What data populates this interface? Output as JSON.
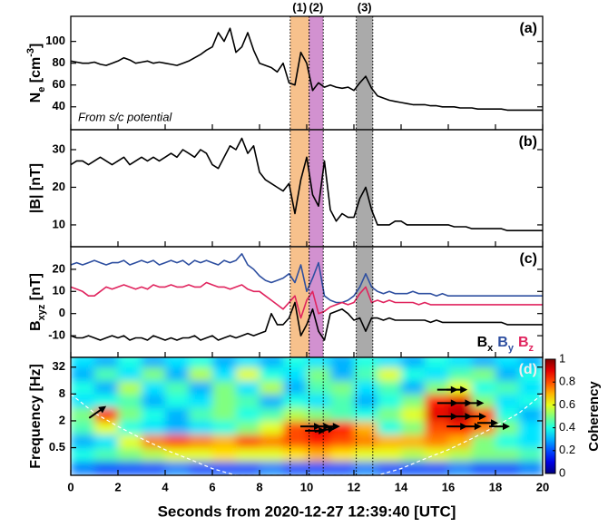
{
  "intervals": [
    {
      "label": "(1)",
      "start": 9.3,
      "end": 10.1,
      "color": "#f7c18c"
    },
    {
      "label": "(2)",
      "start": 10.1,
      "end": 10.7,
      "color": "#d291d0"
    },
    {
      "label": "(3)",
      "start": 12.1,
      "end": 12.8,
      "color": "#aaaaaa"
    }
  ],
  "chart_data": [
    {
      "type": "line",
      "panel_label": "(a)",
      "ylabel": [
        {
          "text": "N"
        },
        {
          "text": "e",
          "script": "sub"
        },
        {
          "text": " [cm"
        },
        {
          "text": "-3",
          "script": "super"
        },
        {
          "text": "]"
        }
      ],
      "annotation": "From s/c potential",
      "xlim": [
        0,
        20
      ],
      "xticks": [
        0,
        2,
        4,
        6,
        8,
        10,
        12,
        14,
        16,
        18,
        20
      ],
      "ylim": [
        19,
        123
      ],
      "yticks": [
        40,
        60,
        80,
        100
      ],
      "x": [
        0,
        0.25,
        0.5,
        0.75,
        1,
        1.25,
        1.5,
        1.75,
        2,
        2.25,
        2.5,
        2.75,
        3,
        3.25,
        3.5,
        3.75,
        4,
        4.25,
        4.5,
        4.75,
        5,
        5.25,
        5.5,
        5.75,
        6,
        6.25,
        6.5,
        6.75,
        7,
        7.25,
        7.5,
        7.75,
        8,
        8.25,
        8.5,
        8.75,
        9,
        9.25,
        9.5,
        9.75,
        10,
        10.25,
        10.5,
        10.75,
        11,
        11.25,
        11.5,
        11.75,
        12,
        12.25,
        12.5,
        12.75,
        13,
        13.25,
        13.5,
        13.75,
        14,
        14.25,
        14.5,
        14.75,
        15,
        15.25,
        15.5,
        15.75,
        16,
        16.25,
        16.5,
        16.75,
        17,
        17.25,
        17.5,
        17.75,
        18,
        18.25,
        18.5,
        18.75,
        19,
        19.25,
        19.5,
        19.75,
        20
      ],
      "series": [
        {
          "color": "#000000",
          "values": [
            82,
            81,
            80,
            80,
            81,
            79,
            78,
            80,
            82,
            85,
            83,
            80,
            81,
            82,
            80,
            81,
            80,
            79,
            78,
            80,
            82,
            85,
            88,
            92,
            95,
            108,
            100,
            112,
            90,
            95,
            108,
            92,
            80,
            78,
            76,
            72,
            80,
            62,
            60,
            90,
            80,
            55,
            62,
            58,
            60,
            58,
            57,
            58,
            55,
            62,
            68,
            57,
            50,
            48,
            46,
            45,
            44,
            43,
            42,
            42,
            42,
            41,
            41,
            40,
            40,
            40,
            39,
            39,
            39,
            38,
            38,
            38,
            38,
            38,
            37,
            37,
            37,
            37,
            37,
            37,
            37
          ]
        }
      ]
    },
    {
      "type": "line",
      "panel_label": "(b)",
      "ylabel": [
        {
          "text": "|B| [nT]"
        }
      ],
      "xlim": [
        0,
        20
      ],
      "xticks": [
        0,
        2,
        4,
        6,
        8,
        10,
        12,
        14,
        16,
        18,
        20
      ],
      "ylim": [
        4.2,
        35.3
      ],
      "yticks": [
        10,
        20,
        30
      ],
      "x": [
        0,
        0.25,
        0.5,
        0.75,
        1,
        1.25,
        1.5,
        1.75,
        2,
        2.25,
        2.5,
        2.75,
        3,
        3.25,
        3.5,
        3.75,
        4,
        4.25,
        4.5,
        4.75,
        5,
        5.25,
        5.5,
        5.75,
        6,
        6.25,
        6.5,
        6.75,
        7,
        7.25,
        7.5,
        7.75,
        8,
        8.25,
        8.5,
        8.75,
        9,
        9.25,
        9.5,
        9.75,
        10,
        10.25,
        10.5,
        10.75,
        11,
        11.25,
        11.5,
        11.75,
        12,
        12.25,
        12.5,
        12.75,
        13,
        13.25,
        13.5,
        13.75,
        14,
        14.25,
        14.5,
        14.75,
        15,
        15.25,
        15.5,
        15.75,
        16,
        16.25,
        16.5,
        16.75,
        17,
        17.25,
        17.5,
        17.75,
        18,
        18.25,
        18.5,
        18.75,
        19,
        19.25,
        19.5,
        19.75,
        20
      ],
      "series": [
        {
          "color": "#000000",
          "values": [
            26,
            27,
            27,
            26,
            27,
            28,
            27,
            26,
            27,
            28,
            26,
            27,
            28,
            27,
            28,
            27,
            28,
            29,
            28,
            30,
            29,
            28,
            30,
            29,
            26,
            25,
            28,
            31,
            30,
            33,
            29,
            31,
            24,
            22,
            21,
            20,
            19,
            21,
            13,
            22,
            28,
            18,
            15,
            27,
            14,
            11,
            13,
            12,
            12,
            17,
            20,
            14,
            10,
            10,
            10,
            11,
            11,
            10,
            10,
            10,
            10,
            10,
            10,
            10,
            10,
            9.5,
            9.5,
            9.5,
            9,
            9,
            9,
            9,
            9,
            9,
            8.5,
            8.5,
            8.5,
            8.5,
            8.5,
            8.5,
            8.5
          ]
        }
      ]
    },
    {
      "type": "line",
      "panel_label": "(c)",
      "ylabel": [
        {
          "text": "B"
        },
        {
          "text": "xyz",
          "script": "sub"
        },
        {
          "text": " [nT]"
        }
      ],
      "xlim": [
        0,
        20
      ],
      "xticks": [
        0,
        2,
        4,
        6,
        8,
        10,
        12,
        14,
        16,
        18,
        20
      ],
      "ylim": [
        -19.8,
        30.2
      ],
      "yticks": [
        -10,
        0,
        10,
        20
      ],
      "legend": "lower right",
      "x": [
        0,
        0.25,
        0.5,
        0.75,
        1,
        1.25,
        1.5,
        1.75,
        2,
        2.25,
        2.5,
        2.75,
        3,
        3.25,
        3.5,
        3.75,
        4,
        4.25,
        4.5,
        4.75,
        5,
        5.25,
        5.5,
        5.75,
        6,
        6.25,
        6.5,
        6.75,
        7,
        7.25,
        7.5,
        7.75,
        8,
        8.25,
        8.5,
        8.75,
        9,
        9.25,
        9.5,
        9.75,
        10,
        10.25,
        10.5,
        10.75,
        11,
        11.25,
        11.5,
        11.75,
        12,
        12.25,
        12.5,
        12.75,
        13,
        13.25,
        13.5,
        13.75,
        14,
        14.25,
        14.5,
        14.75,
        15,
        15.25,
        15.5,
        15.75,
        16,
        16.25,
        16.5,
        16.75,
        17,
        17.25,
        17.5,
        17.75,
        18,
        18.25,
        18.5,
        18.75,
        19,
        19.25,
        19.5,
        19.75,
        20
      ],
      "series": [
        {
          "name": "B",
          "sub": "x",
          "color": "#000000",
          "values": [
            -10,
            -11,
            -11,
            -10,
            -11,
            -12,
            -11,
            -10,
            -11,
            -10,
            -12,
            -11,
            -11,
            -12,
            -10,
            -11,
            -12,
            -11,
            -12,
            -11,
            -11,
            -10,
            -12,
            -11,
            -10,
            -12,
            -11,
            -10,
            -11,
            -10,
            -9,
            -10,
            -9,
            -8,
            0,
            -5,
            -5,
            -2,
            5,
            -10,
            -5,
            2,
            -8,
            -12,
            0,
            1,
            2,
            0,
            -3,
            -2,
            -8,
            -2,
            -2,
            -3,
            -2,
            -3,
            -3,
            -3,
            -3,
            -3,
            -3,
            -4,
            -3,
            -4,
            -4,
            -4,
            -4,
            -4,
            -4,
            -4,
            -4,
            -4,
            -4,
            -4,
            -5,
            -5,
            -5,
            -5,
            -5,
            -5,
            -5
          ]
        },
        {
          "name": "B",
          "sub": "y",
          "color": "#2e4fa0",
          "values": [
            22,
            23,
            22,
            23,
            24,
            23,
            22,
            23,
            23,
            24,
            22,
            23,
            24,
            23,
            24,
            22,
            23,
            24,
            23,
            24,
            22,
            24,
            23,
            24,
            23,
            22,
            24,
            23,
            24,
            27,
            22,
            20,
            17,
            15,
            14,
            15,
            16,
            18,
            14,
            22,
            10,
            16,
            23,
            8,
            6,
            5,
            5,
            6,
            8,
            12,
            18,
            12,
            10,
            9,
            10,
            9,
            9,
            9,
            10,
            9,
            9,
            9,
            8,
            9,
            8,
            8,
            8,
            8,
            8,
            8,
            8,
            8,
            8,
            8,
            8,
            8,
            8,
            8,
            8,
            8,
            8
          ]
        },
        {
          "name": "B",
          "sub": "z",
          "color": "#e0245e",
          "values": [
            12,
            11,
            10,
            8,
            8,
            10,
            12,
            11,
            12,
            13,
            12,
            11,
            12,
            11,
            13,
            12,
            12,
            13,
            12,
            12,
            13,
            12,
            12,
            14,
            13,
            12,
            12,
            11,
            12,
            13,
            11,
            10,
            10,
            8,
            6,
            4,
            2,
            5,
            8,
            -2,
            6,
            10,
            0,
            1,
            3,
            4,
            5,
            4,
            5,
            9,
            12,
            5,
            6,
            5,
            6,
            5,
            5,
            5,
            5,
            4,
            5,
            4,
            4,
            4,
            4,
            4,
            4,
            4,
            4,
            4,
            4,
            4,
            4,
            4,
            4,
            4,
            4,
            4,
            4,
            4,
            4
          ]
        }
      ]
    },
    {
      "type": "heatmap",
      "panel_label": "(d)",
      "ylabel": [
        {
          "text": "Frequency [Hz]"
        }
      ],
      "x_label": "Seconds from 2020-12-27 12:39:40 [UTC]",
      "xlim": [
        0,
        20
      ],
      "xticks": [
        0,
        2,
        4,
        6,
        8,
        10,
        12,
        14,
        16,
        18,
        20
      ],
      "ylim": [
        0.12,
        53
      ],
      "yticks": [
        0.5,
        2,
        8,
        32
      ],
      "log_y": true,
      "colorbar_label": "Coherency",
      "clim": [
        0,
        1
      ],
      "cticks": [
        0,
        0.2,
        0.4,
        0.6,
        0.8,
        1
      ],
      "x_edges": [
        0,
        1,
        2,
        3,
        4,
        5,
        6,
        7,
        8,
        9,
        10,
        11,
        12,
        13,
        14,
        15,
        16,
        17,
        18,
        19,
        20
      ],
      "y_edges": [
        0.125,
        0.25,
        0.5,
        1,
        2,
        4,
        8,
        16,
        32,
        64
      ],
      "z": [
        [
          0.25,
          0.2,
          0.2,
          0.2,
          0.25,
          0.2,
          0.2,
          0.2,
          0.25,
          0.2,
          0.2,
          0.2,
          0.25,
          0.2,
          0.2,
          0.2,
          0.25,
          0.2,
          0.2,
          0.25
        ],
        [
          0.4,
          0.45,
          0.5,
          0.55,
          0.6,
          0.6,
          0.65,
          0.6,
          0.6,
          0.65,
          0.7,
          0.65,
          0.6,
          0.6,
          0.55,
          0.6,
          0.55,
          0.5,
          0.5,
          0.45
        ],
        [
          0.3,
          0.35,
          0.6,
          0.75,
          0.8,
          0.75,
          0.7,
          0.8,
          0.75,
          0.8,
          0.85,
          0.8,
          0.75,
          0.7,
          0.7,
          0.75,
          0.7,
          0.5,
          0.4,
          0.35
        ],
        [
          0.45,
          0.6,
          0.4,
          0.35,
          0.3,
          0.35,
          0.4,
          0.5,
          0.6,
          0.8,
          0.9,
          0.85,
          0.7,
          0.4,
          0.5,
          0.8,
          0.85,
          0.75,
          0.5,
          0.35
        ],
        [
          0.5,
          0.85,
          0.5,
          0.4,
          0.3,
          0.45,
          0.5,
          0.4,
          0.45,
          0.55,
          0.5,
          0.45,
          0.4,
          0.5,
          0.6,
          0.9,
          0.95,
          0.8,
          0.4,
          0.3
        ],
        [
          0.35,
          0.4,
          0.45,
          0.3,
          0.4,
          0.35,
          0.5,
          0.45,
          0.3,
          0.4,
          0.35,
          0.45,
          0.3,
          0.4,
          0.5,
          0.85,
          0.9,
          0.5,
          0.35,
          0.4
        ],
        [
          0.4,
          0.3,
          0.55,
          0.35,
          0.45,
          0.3,
          0.5,
          0.35,
          0.55,
          0.3,
          0.45,
          0.5,
          0.35,
          0.45,
          0.3,
          0.5,
          0.6,
          0.4,
          0.45,
          0.35
        ],
        [
          0.3,
          0.45,
          0.35,
          0.5,
          0.3,
          0.55,
          0.35,
          0.6,
          0.4,
          0.35,
          0.5,
          0.3,
          0.45,
          0.6,
          0.4,
          0.35,
          0.45,
          0.5,
          0.3,
          0.4
        ],
        [
          0.35,
          0.3,
          0.4,
          0.3,
          0.35,
          0.4,
          0.3,
          0.35,
          0.3,
          0.4,
          0.35,
          0.3,
          0.4,
          0.35,
          0.3,
          0.4,
          0.35,
          0.3,
          0.35,
          0.3
        ]
      ],
      "arrows": {
        "x": [
          1.0,
          10.0,
          10.4,
          10.8,
          10.2,
          10.6,
          15.8,
          16.2,
          15.8,
          16.4,
          16.9,
          15.8,
          16.4,
          17.0,
          17.5,
          16.2,
          16.8,
          18.0
        ],
        "y": [
          2.8,
          1.5,
          1.5,
          1.5,
          1.2,
          1.2,
          10,
          10,
          5,
          5,
          5,
          2.5,
          2.5,
          2.5,
          1.8,
          1.5,
          1.5,
          1.5
        ],
        "angle": [
          35,
          0,
          0,
          0,
          0,
          10,
          0,
          0,
          0,
          0,
          0,
          0,
          0,
          0,
          0,
          0,
          0,
          0
        ]
      },
      "coi": {
        "x": [
          0,
          1,
          2,
          3,
          4,
          5,
          6,
          7,
          13,
          14,
          15,
          16,
          17,
          18,
          19,
          20
        ],
        "y": [
          8,
          3,
          1.5,
          0.8,
          0.45,
          0.28,
          0.17,
          0.12,
          0.12,
          0.17,
          0.28,
          0.45,
          0.8,
          1.5,
          3,
          8
        ]
      }
    }
  ]
}
